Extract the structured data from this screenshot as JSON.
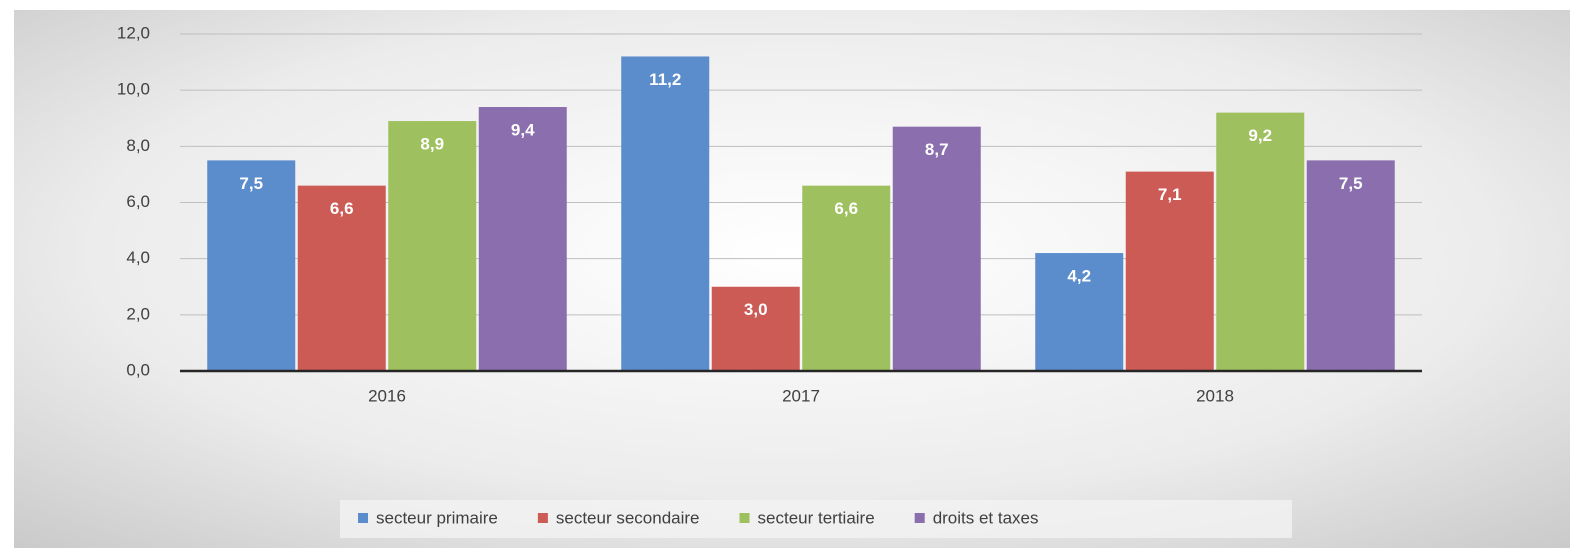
{
  "chart_data": {
    "type": "bar",
    "categories": [
      "2016",
      "2017",
      "2018"
    ],
    "series": [
      {
        "name": "secteur primaire",
        "color": "#5b8ccb",
        "values": [
          7.5,
          11.2,
          4.2
        ],
        "value_labels": [
          "7,5",
          "11,2",
          "4,2"
        ]
      },
      {
        "name": "secteur secondaire",
        "color": "#cc5a55",
        "values": [
          6.6,
          3.0,
          7.1
        ],
        "value_labels": [
          "6,6",
          "3,0",
          "7,1"
        ]
      },
      {
        "name": "secteur tertiaire",
        "color": "#9fc05e",
        "values": [
          8.9,
          6.6,
          9.2
        ],
        "value_labels": [
          "8,9",
          "6,6",
          "9,2"
        ]
      },
      {
        "name": "droits et taxes",
        "color": "#8a6eae",
        "values": [
          9.4,
          8.7,
          7.5
        ],
        "value_labels": [
          "9,4",
          "8,7",
          "7,5"
        ]
      }
    ],
    "ylim": [
      0,
      12
    ],
    "yticks": [
      {
        "value": 0,
        "label": "0,0"
      },
      {
        "value": 2,
        "label": "2,0"
      },
      {
        "value": 4,
        "label": "4,0"
      },
      {
        "value": 6,
        "label": "6,0"
      },
      {
        "value": 8,
        "label": "8,0"
      },
      {
        "value": 10,
        "label": "10,0"
      },
      {
        "value": 12,
        "label": "12,0"
      }
    ],
    "grid": true,
    "legend": "bottom"
  }
}
